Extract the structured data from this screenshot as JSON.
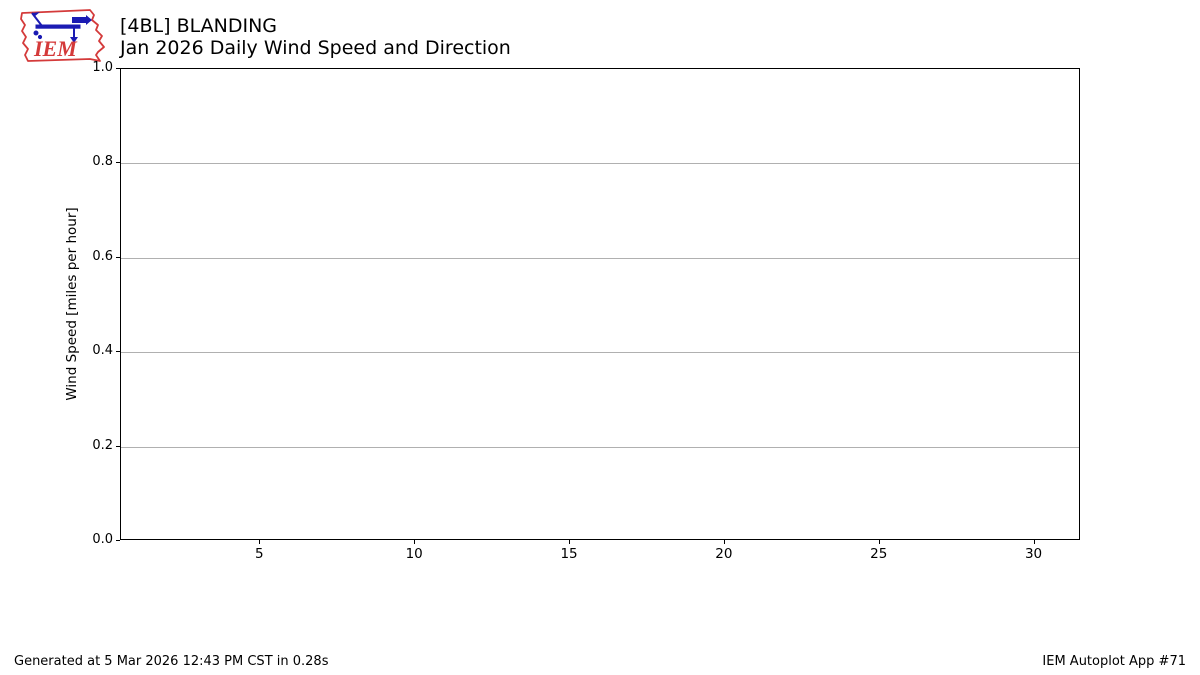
{
  "header": {
    "title_line1": "[4BL] BLANDING",
    "title_line2": "Jan 2026 Daily Wind Speed and Direction",
    "logo_text": "IEM"
  },
  "chart_data": {
    "type": "line",
    "title": "[4BL] BLANDING",
    "subtitle": "Jan 2026 Daily Wind Speed and Direction",
    "series": [],
    "x": [],
    "x_ticks": [
      5,
      10,
      15,
      20,
      25,
      30
    ],
    "y_ticks": [
      "0.0",
      "0.2",
      "0.4",
      "0.6",
      "0.8",
      "1.0"
    ],
    "ylabel": "Wind Speed [miles per hour]",
    "xlim": [
      0.5,
      31.5
    ],
    "ylim": [
      0.0,
      1.0
    ],
    "grid": "horizontal",
    "legend": "none"
  },
  "footer": {
    "generated": "Generated at 5 Mar 2026 12:43 PM CST in 0.28s",
    "app": "IEM Autoplot App #71"
  },
  "colors": {
    "grid": "#b0b0b0",
    "spine": "#000000",
    "text": "#000000",
    "logo_red": "#d campos"
  }
}
